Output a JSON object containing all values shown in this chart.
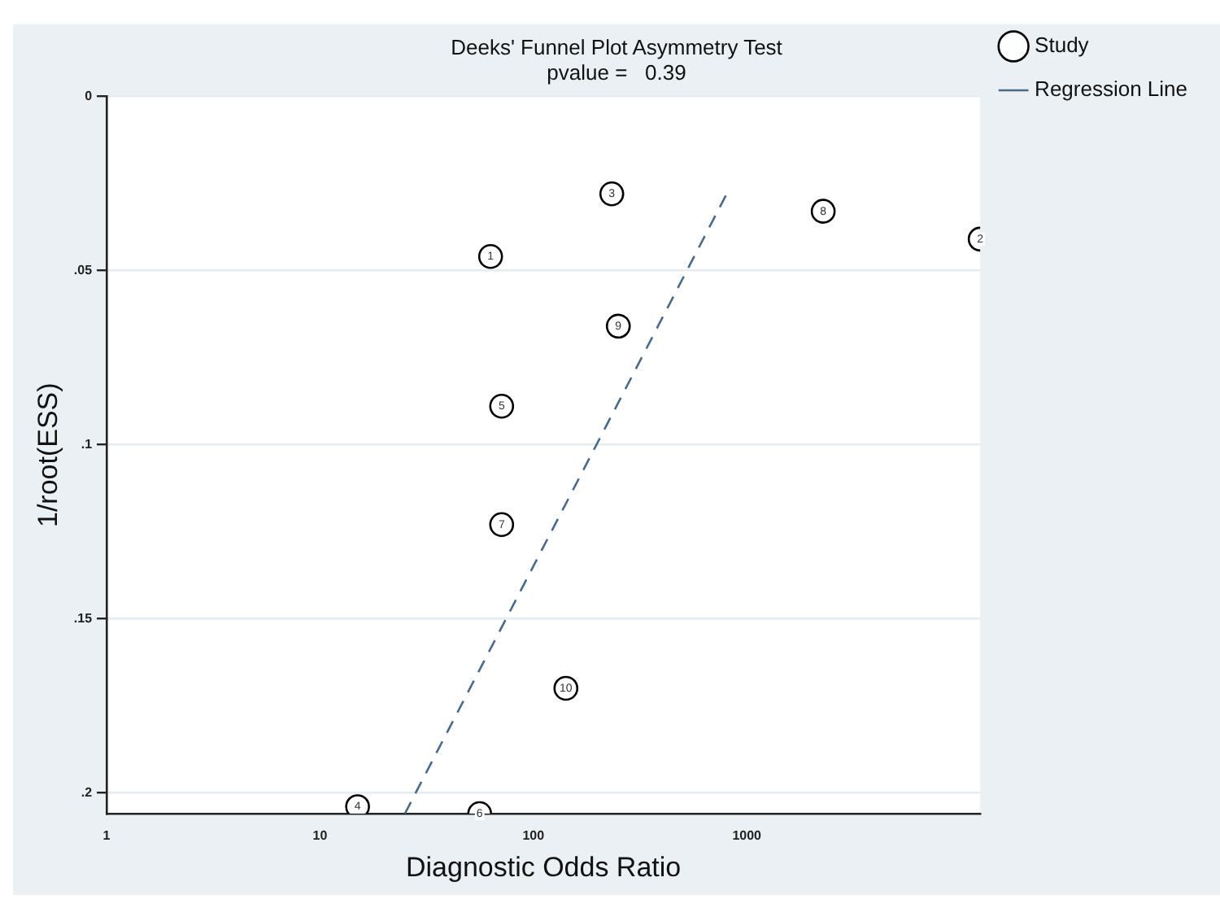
{
  "chart_data": {
    "type": "scatter",
    "title": "Deeks' Funnel Plot Asymmetry Test",
    "subtitle": "pvalue =   0.39",
    "xlabel": "Diagnostic Odds Ratio",
    "ylabel": "1/root(ESS)",
    "log": "x",
    "xlim": [
      1,
      12400
    ],
    "xticks": [
      1,
      10,
      100,
      1000
    ],
    "ylim": [
      0.206,
      0
    ],
    "yticks": [
      {
        "value": 0,
        "label": "0"
      },
      {
        "value": 0.05,
        "label": ".05"
      },
      {
        "value": 0.1,
        "label": ".1"
      },
      {
        "value": 0.15,
        "label": ".15"
      },
      {
        "value": 0.2,
        "label": ".2"
      }
    ],
    "grid": "y",
    "legend": "right",
    "series": [
      {
        "name": "Study",
        "marker": "circle",
        "color": "#000000",
        "x": [
          63,
          12400,
          233,
          15,
          71,
          56,
          71,
          2280,
          250,
          142
        ],
        "values": [
          0.046,
          0.041,
          0.028,
          0.204,
          0.089,
          0.206,
          0.123,
          0.033,
          0.066,
          0.17
        ]
      },
      {
        "name": "Regression Line",
        "type": "line",
        "marker": "none",
        "line_style": "dashed",
        "color": "#4a6a8a",
        "x": [
          25,
          805
        ],
        "values": [
          0.206,
          0.028
        ]
      }
    ],
    "annotations": [
      {
        "text": "1",
        "x": 63,
        "y": 0.046
      },
      {
        "text": "2",
        "x": 12400,
        "y": 0.041
      },
      {
        "text": "3",
        "x": 233,
        "y": 0.028
      },
      {
        "text": "4",
        "x": 15,
        "y": 0.204
      },
      {
        "text": "5",
        "x": 71,
        "y": 0.089
      },
      {
        "text": "6",
        "x": 56,
        "y": 0.206
      },
      {
        "text": "7",
        "x": 71,
        "y": 0.123
      },
      {
        "text": "8",
        "x": 2280,
        "y": 0.033
      },
      {
        "text": "9",
        "x": 250,
        "y": 0.066
      },
      {
        "text": "10",
        "x": 142,
        "y": 0.17
      }
    ]
  }
}
